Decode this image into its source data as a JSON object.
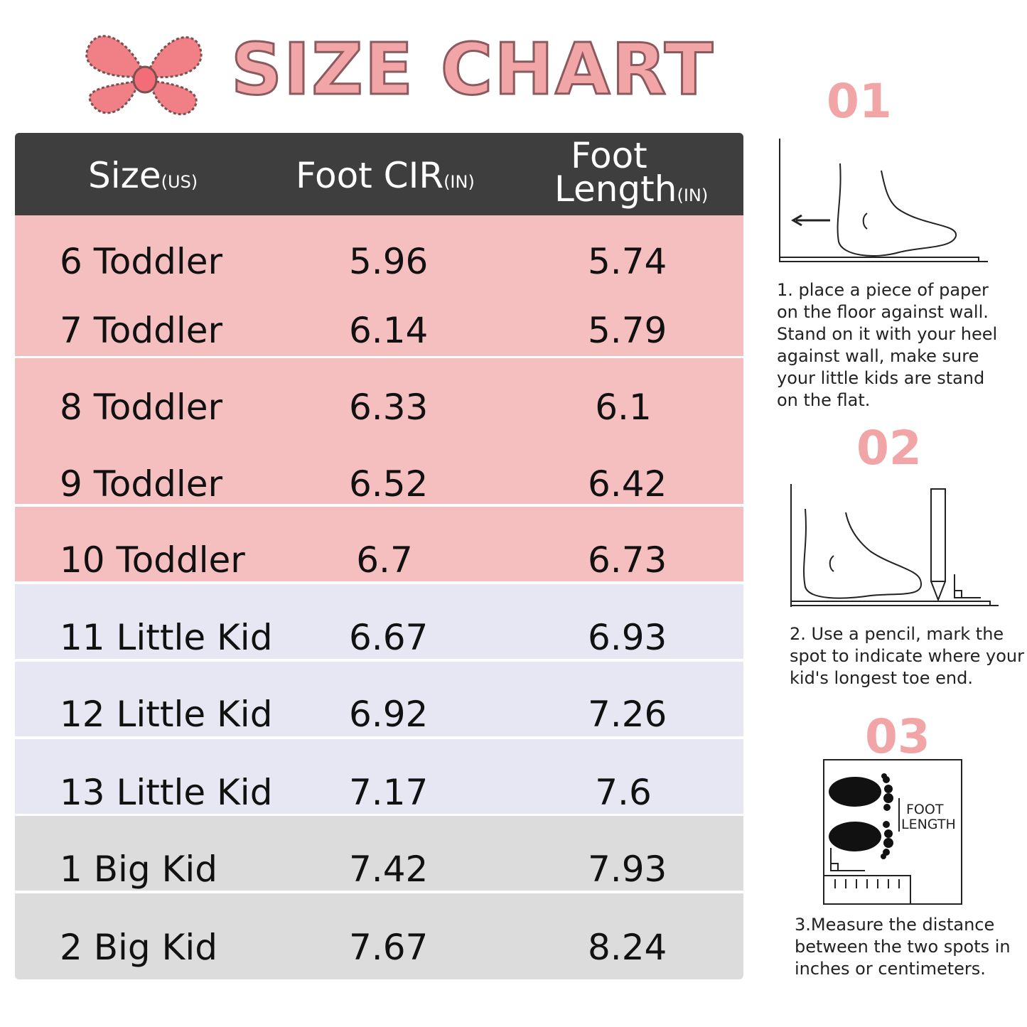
{
  "title": "SIZE CHART",
  "header": {
    "size": "Size",
    "size_unit": "(US)",
    "cir": "Foot CIR",
    "cir_unit": "(IN)",
    "length_line1": "Foot",
    "length_line2": "Length",
    "length_unit": "(IN)"
  },
  "rows": [
    {
      "size": "6 Toddler",
      "cir": "5.96",
      "length": "5.74"
    },
    {
      "size": "7 Toddler",
      "cir": "6.14",
      "length": "5.79"
    },
    {
      "size": "8 Toddler",
      "cir": "6.33",
      "length": "6.1"
    },
    {
      "size": "9 Toddler",
      "cir": "6.52",
      "length": "6.42"
    },
    {
      "size": "10 Toddler",
      "cir": "6.7",
      "length": "6.73"
    },
    {
      "size": "11 Little Kid",
      "cir": "6.67",
      "length": "6.93"
    },
    {
      "size": "12 Little Kid",
      "cir": "6.92",
      "length": "7.26"
    },
    {
      "size": "13 Little Kid",
      "cir": "7.17",
      "length": "7.6"
    },
    {
      "size": "1 Big Kid",
      "cir": "7.42",
      "length": "7.93"
    },
    {
      "size": "2 Big Kid",
      "cir": "7.67",
      "length": "8.24"
    }
  ],
  "steps": [
    {
      "number": "01",
      "text": "1. place a piece of paper on the floor against wall. Stand on it with your heel against wall, make sure your little kids are stand on the flat."
    },
    {
      "number": "02",
      "text": "2. Use a pencil, mark the spot to indicate where your kid's longest toe end."
    },
    {
      "number": "03",
      "text": "3.Measure the distance between the two spots in inches or centimeters."
    }
  ],
  "diagram3": {
    "label_line1": "FOOT",
    "label_line2": "LENGTH"
  },
  "colors": {
    "accent_pink": "#f2a5a6",
    "header_bg": "#3e3e3e",
    "toddler_bg": "#f5bfbf",
    "little_kid_bg": "#e6e7f3",
    "big_kid_bg": "#dcdcdc"
  }
}
